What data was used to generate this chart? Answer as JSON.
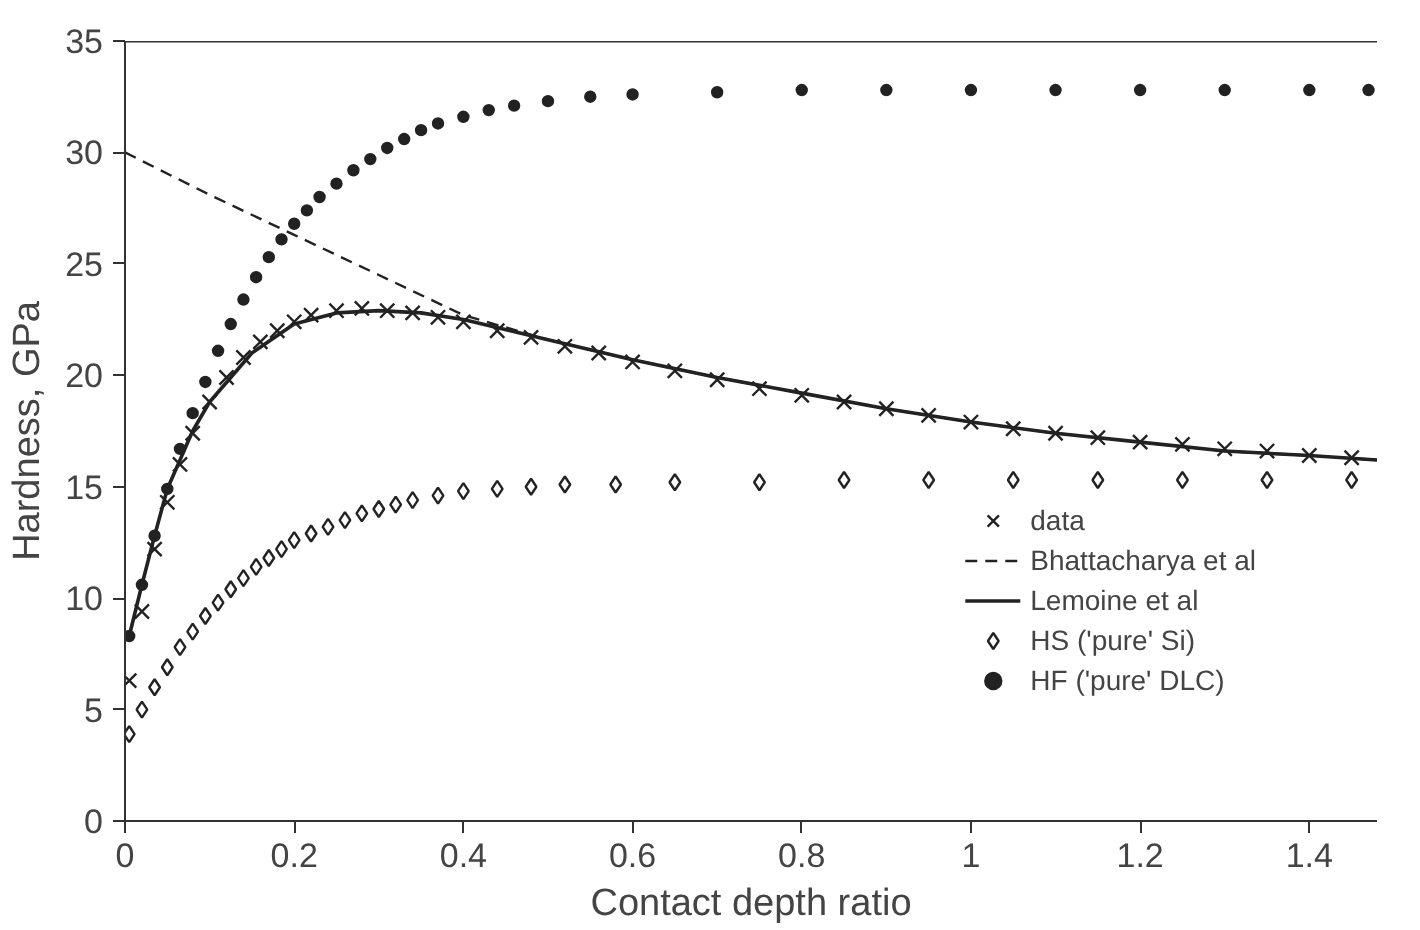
{
  "chart_data": {
    "type": "scatter",
    "xlabel": "Contact depth ratio",
    "ylabel": "Hardness, GPa",
    "xlim": [
      0,
      1.48
    ],
    "ylim": [
      0,
      35
    ],
    "xticks": [
      0,
      0.2,
      0.4,
      0.6,
      0.8,
      1,
      1.2,
      1.4
    ],
    "yticks": [
      0,
      5,
      10,
      15,
      20,
      25,
      30,
      35
    ],
    "grid": false,
    "legend": "bottom right",
    "series": [
      {
        "name": "data",
        "marker": "cross",
        "color": "#222222",
        "x": [
          0.005,
          0.02,
          0.035,
          0.05,
          0.065,
          0.08,
          0.1,
          0.12,
          0.14,
          0.16,
          0.18,
          0.2,
          0.22,
          0.25,
          0.28,
          0.31,
          0.34,
          0.37,
          0.4,
          0.44,
          0.48,
          0.52,
          0.56,
          0.6,
          0.65,
          0.7,
          0.75,
          0.8,
          0.85,
          0.9,
          0.95,
          1.0,
          1.05,
          1.1,
          1.15,
          1.2,
          1.25,
          1.3,
          1.35,
          1.4,
          1.45
        ],
        "values": [
          6.3,
          9.4,
          12.2,
          14.3,
          16.0,
          17.4,
          18.8,
          19.9,
          20.8,
          21.5,
          22.0,
          22.4,
          22.7,
          22.9,
          23.0,
          22.9,
          22.8,
          22.6,
          22.4,
          22.0,
          21.7,
          21.3,
          21.0,
          20.6,
          20.2,
          19.8,
          19.4,
          19.1,
          18.8,
          18.5,
          18.2,
          17.9,
          17.6,
          17.4,
          17.2,
          17.0,
          16.9,
          16.7,
          16.6,
          16.4,
          16.3
        ]
      },
      {
        "name": "Bhattacharya et al",
        "type": "line",
        "line_style": "dashed",
        "marker": "none",
        "color": "#222222",
        "x": [
          0,
          0.1,
          0.2,
          0.3,
          0.4,
          0.5,
          0.6,
          0.7,
          0.8,
          0.9,
          1.0,
          1.1,
          1.2,
          1.3,
          1.4,
          1.48
        ],
        "values": [
          30,
          28.1,
          26.3,
          24.5,
          22.7,
          21.6,
          20.7,
          19.9,
          19.2,
          18.5,
          17.9,
          17.4,
          17.0,
          16.6,
          16.4,
          16.2
        ]
      },
      {
        "name": "Lemoine et al",
        "type": "line",
        "line_style": "solid",
        "marker": "none",
        "color": "#222222",
        "x": [
          0.005,
          0.02,
          0.035,
          0.05,
          0.08,
          0.1,
          0.15,
          0.2,
          0.25,
          0.3,
          0.35,
          0.4,
          0.5,
          0.6,
          0.7,
          0.8,
          0.9,
          1.0,
          1.1,
          1.2,
          1.3,
          1.4,
          1.48
        ],
        "values": [
          8.3,
          10.6,
          12.8,
          14.9,
          17.5,
          18.8,
          21.0,
          22.3,
          22.8,
          22.9,
          22.8,
          22.5,
          21.6,
          20.7,
          19.9,
          19.2,
          18.5,
          17.9,
          17.4,
          17.0,
          16.6,
          16.4,
          16.2
        ]
      },
      {
        "name": "HS ('pure' Si)",
        "marker": "diamond",
        "color": "#222222",
        "x": [
          0.005,
          0.02,
          0.035,
          0.05,
          0.065,
          0.08,
          0.095,
          0.11,
          0.125,
          0.14,
          0.155,
          0.17,
          0.185,
          0.2,
          0.22,
          0.24,
          0.26,
          0.28,
          0.3,
          0.32,
          0.34,
          0.37,
          0.4,
          0.44,
          0.48,
          0.52,
          0.58,
          0.65,
          0.75,
          0.85,
          0.95,
          1.05,
          1.15,
          1.25,
          1.35,
          1.45
        ],
        "values": [
          3.9,
          5.0,
          6.0,
          6.9,
          7.8,
          8.5,
          9.2,
          9.8,
          10.4,
          10.9,
          11.4,
          11.8,
          12.2,
          12.6,
          12.9,
          13.2,
          13.5,
          13.8,
          14.0,
          14.2,
          14.4,
          14.6,
          14.8,
          14.9,
          15.0,
          15.1,
          15.1,
          15.2,
          15.2,
          15.3,
          15.3,
          15.3,
          15.3,
          15.3,
          15.3,
          15.3
        ]
      },
      {
        "name": "HF ('pure' DLC)",
        "marker": "circle",
        "color": "#222222",
        "x": [
          0.005,
          0.02,
          0.035,
          0.05,
          0.065,
          0.08,
          0.095,
          0.11,
          0.125,
          0.14,
          0.155,
          0.17,
          0.185,
          0.2,
          0.215,
          0.23,
          0.25,
          0.27,
          0.29,
          0.31,
          0.33,
          0.35,
          0.37,
          0.4,
          0.43,
          0.46,
          0.5,
          0.55,
          0.6,
          0.7,
          0.8,
          0.9,
          1.0,
          1.1,
          1.2,
          1.3,
          1.4,
          1.47
        ],
        "values": [
          8.3,
          10.6,
          12.8,
          14.9,
          16.7,
          18.3,
          19.7,
          21.1,
          22.3,
          23.4,
          24.4,
          25.3,
          26.1,
          26.8,
          27.4,
          28.0,
          28.6,
          29.2,
          29.7,
          30.2,
          30.6,
          31.0,
          31.3,
          31.6,
          31.9,
          32.1,
          32.3,
          32.5,
          32.6,
          32.7,
          32.8,
          32.8,
          32.8,
          32.8,
          32.8,
          32.8,
          32.8,
          32.8
        ]
      }
    ]
  }
}
